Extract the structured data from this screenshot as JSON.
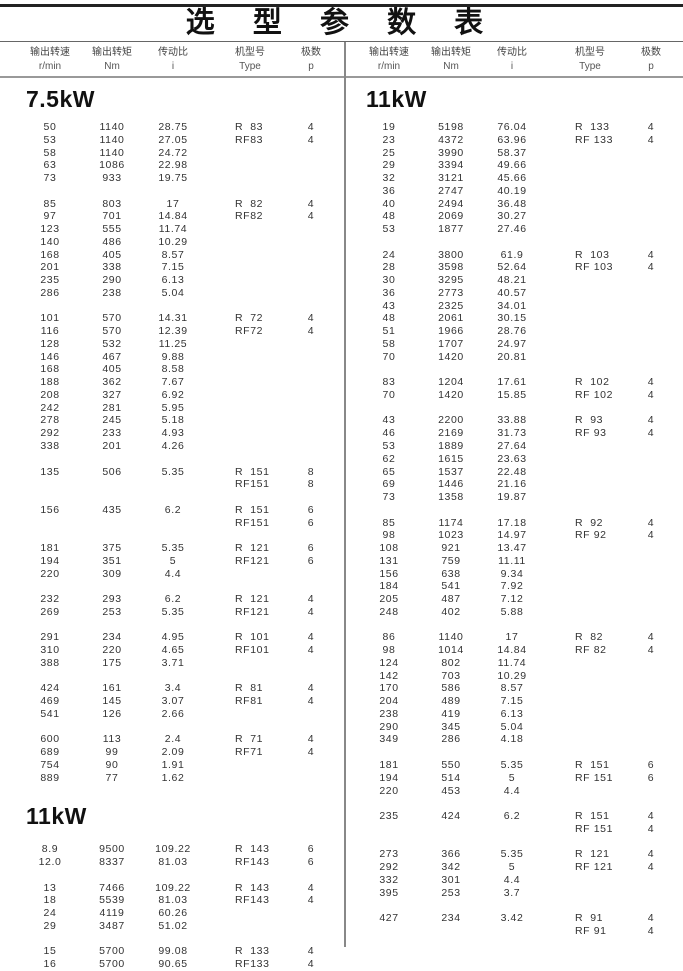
{
  "title": "选 型 参 数 表",
  "headers": [
    {
      "cn": "输出转速",
      "unit": "r/min"
    },
    {
      "cn": "输出转矩",
      "unit": "Nm"
    },
    {
      "cn": "传动比",
      "unit": "i"
    },
    {
      "cn": "机型号",
      "unit": "Type"
    },
    {
      "cn": "极数",
      "unit": "p"
    }
  ],
  "left": [
    {
      "title": "7.5kW",
      "groups": [
        [
          [
            "50",
            "1140",
            "28.75",
            "R  83",
            "4"
          ],
          [
            "53",
            "1140",
            "27.05",
            "RF83",
            "4"
          ],
          [
            "58",
            "1140",
            "24.72",
            "",
            ""
          ],
          [
            "63",
            "1086",
            "22.98",
            "",
            ""
          ],
          [
            "73",
            "933",
            "19.75",
            "",
            ""
          ]
        ],
        [
          [
            "85",
            "803",
            "17",
            "R  82",
            "4"
          ],
          [
            "97",
            "701",
            "14.84",
            "RF82",
            "4"
          ],
          [
            "123",
            "555",
            "11.74",
            "",
            ""
          ],
          [
            "140",
            "486",
            "10.29",
            "",
            ""
          ],
          [
            "168",
            "405",
            "8.57",
            "",
            ""
          ],
          [
            "201",
            "338",
            "7.15",
            "",
            ""
          ],
          [
            "235",
            "290",
            "6.13",
            "",
            ""
          ],
          [
            "286",
            "238",
            "5.04",
            "",
            ""
          ]
        ],
        [
          [
            "101",
            "570",
            "14.31",
            "R  72",
            "4"
          ],
          [
            "116",
            "570",
            "12.39",
            "RF72",
            "4"
          ],
          [
            "128",
            "532",
            "11.25",
            "",
            ""
          ],
          [
            "146",
            "467",
            "9.88",
            "",
            ""
          ],
          [
            "168",
            "405",
            "8.58",
            "",
            ""
          ],
          [
            "188",
            "362",
            "7.67",
            "",
            ""
          ],
          [
            "208",
            "327",
            "6.92",
            "",
            ""
          ],
          [
            "242",
            "281",
            "5.95",
            "",
            ""
          ],
          [
            "278",
            "245",
            "5.18",
            "",
            ""
          ],
          [
            "292",
            "233",
            "4.93",
            "",
            ""
          ],
          [
            "338",
            "201",
            "4.26",
            "",
            ""
          ]
        ],
        [
          [
            "135",
            "506",
            "5.35",
            "R  151",
            "8"
          ],
          [
            "",
            "",
            "",
            "RF151",
            "8"
          ]
        ],
        [
          [
            "156",
            "435",
            "6.2",
            "R  151",
            "6"
          ],
          [
            "",
            "",
            "",
            "RF151",
            "6"
          ]
        ],
        [
          [
            "181",
            "375",
            "5.35",
            "R  121",
            "6"
          ],
          [
            "194",
            "351",
            "5",
            "RF121",
            "6"
          ],
          [
            "220",
            "309",
            "4.4",
            "",
            ""
          ]
        ],
        [
          [
            "232",
            "293",
            "6.2",
            "R  121",
            "4"
          ],
          [
            "269",
            "253",
            "5.35",
            "RF121",
            "4"
          ]
        ],
        [
          [
            "291",
            "234",
            "4.95",
            "R  101",
            "4"
          ],
          [
            "310",
            "220",
            "4.65",
            "RF101",
            "4"
          ],
          [
            "388",
            "175",
            "3.71",
            "",
            ""
          ]
        ],
        [
          [
            "424",
            "161",
            "3.4",
            "R  81",
            "4"
          ],
          [
            "469",
            "145",
            "3.07",
            "RF81",
            "4"
          ],
          [
            "541",
            "126",
            "2.66",
            "",
            ""
          ]
        ],
        [
          [
            "600",
            "113",
            "2.4",
            "R  71",
            "4"
          ],
          [
            "689",
            "99",
            "2.09",
            "RF71",
            "4"
          ],
          [
            "754",
            "90",
            "1.91",
            "",
            ""
          ],
          [
            "889",
            "77",
            "1.62",
            "",
            ""
          ]
        ]
      ]
    },
    {
      "title": "11kW",
      "groups": [
        [
          [
            "8.9",
            "9500",
            "109.22",
            "R  143",
            "6"
          ],
          [
            "12.0",
            "8337",
            "81.03",
            "RF143",
            "6"
          ]
        ],
        [
          [
            "13",
            "7466",
            "109.22",
            "R  143",
            "4"
          ],
          [
            "18",
            "5539",
            "81.03",
            "RF143",
            "4"
          ],
          [
            "24",
            "4119",
            "60.26",
            "",
            ""
          ],
          [
            "29",
            "3487",
            "51.02",
            "",
            ""
          ]
        ],
        [
          [
            "15",
            "5700",
            "99.08",
            "R  133",
            "4"
          ],
          [
            "16",
            "5700",
            "90.65",
            "RF133",
            "4"
          ]
        ]
      ]
    }
  ],
  "right": [
    {
      "title": "11kW",
      "groups": [
        [
          [
            "19",
            "5198",
            "76.04",
            "R  133",
            "4"
          ],
          [
            "23",
            "4372",
            "63.96",
            "RF 133",
            "4"
          ],
          [
            "25",
            "3990",
            "58.37",
            "",
            ""
          ],
          [
            "29",
            "3394",
            "49.66",
            "",
            ""
          ],
          [
            "32",
            "3121",
            "45.66",
            "",
            ""
          ],
          [
            "36",
            "2747",
            "40.19",
            "",
            ""
          ],
          [
            "40",
            "2494",
            "36.48",
            "",
            ""
          ],
          [
            "48",
            "2069",
            "30.27",
            "",
            ""
          ],
          [
            "53",
            "1877",
            "27.46",
            "",
            ""
          ]
        ],
        [
          [
            "24",
            "3800",
            "61.9",
            "R  103",
            "4"
          ],
          [
            "28",
            "3598",
            "52.64",
            "RF 103",
            "4"
          ],
          [
            "30",
            "3295",
            "48.21",
            "",
            ""
          ],
          [
            "36",
            "2773",
            "40.57",
            "",
            ""
          ],
          [
            "43",
            "2325",
            "34.01",
            "",
            ""
          ],
          [
            "48",
            "2061",
            "30.15",
            "",
            ""
          ],
          [
            "51",
            "1966",
            "28.76",
            "",
            ""
          ],
          [
            "58",
            "1707",
            "24.97",
            "",
            ""
          ],
          [
            "70",
            "1420",
            "20.81",
            "",
            ""
          ]
        ],
        [
          [
            "83",
            "1204",
            "17.61",
            "R  102",
            "4"
          ],
          [
            "70",
            "1420",
            "15.85",
            "RF 102",
            "4"
          ]
        ],
        [
          [
            "43",
            "2200",
            "33.88",
            "R  93",
            "4"
          ],
          [
            "46",
            "2169",
            "31.73",
            "RF 93",
            "4"
          ],
          [
            "53",
            "1889",
            "27.64",
            "",
            ""
          ],
          [
            "62",
            "1615",
            "23.63",
            "",
            ""
          ],
          [
            "65",
            "1537",
            "22.48",
            "",
            ""
          ],
          [
            "69",
            "1446",
            "21.16",
            "",
            ""
          ],
          [
            "73",
            "1358",
            "19.87",
            "",
            ""
          ]
        ],
        [
          [
            "85",
            "1174",
            "17.18",
            "R  92",
            "4"
          ],
          [
            "98",
            "1023",
            "14.97",
            "RF 92",
            "4"
          ],
          [
            "108",
            "921",
            "13.47",
            "",
            ""
          ],
          [
            "131",
            "759",
            "11.11",
            "",
            ""
          ],
          [
            "156",
            "638",
            "9.34",
            "",
            ""
          ],
          [
            "184",
            "541",
            "7.92",
            "",
            ""
          ],
          [
            "205",
            "487",
            "7.12",
            "",
            ""
          ],
          [
            "248",
            "402",
            "5.88",
            "",
            ""
          ]
        ],
        [
          [
            "86",
            "1140",
            "17",
            "R  82",
            "4"
          ],
          [
            "98",
            "1014",
            "14.84",
            "RF 82",
            "4"
          ],
          [
            "124",
            "802",
            "11.74",
            "",
            ""
          ],
          [
            "142",
            "703",
            "10.29",
            "",
            ""
          ],
          [
            "170",
            "586",
            "8.57",
            "",
            ""
          ],
          [
            "204",
            "489",
            "7.15",
            "",
            ""
          ],
          [
            "238",
            "419",
            "6.13",
            "",
            ""
          ],
          [
            "290",
            "345",
            "5.04",
            "",
            ""
          ],
          [
            "349",
            "286",
            "4.18",
            "",
            ""
          ]
        ],
        [
          [
            "181",
            "550",
            "5.35",
            "R  151",
            "6"
          ],
          [
            "194",
            "514",
            "5",
            "RF 151",
            "6"
          ],
          [
            "220",
            "453",
            "4.4",
            "",
            ""
          ]
        ],
        [
          [
            "235",
            "424",
            "6.2",
            "R  151",
            "4"
          ],
          [
            "",
            "",
            "",
            "RF 151",
            "4"
          ]
        ],
        [
          [
            "273",
            "366",
            "5.35",
            "R  121",
            "4"
          ],
          [
            "292",
            "342",
            "5",
            "RF 121",
            "4"
          ],
          [
            "332",
            "301",
            "4.4",
            "",
            ""
          ],
          [
            "395",
            "253",
            "3.7",
            "",
            ""
          ]
        ],
        [
          [
            "427",
            "234",
            "3.42",
            "R  91",
            "4"
          ],
          [
            "",
            "",
            "",
            "RF 91",
            "4"
          ]
        ]
      ]
    }
  ]
}
